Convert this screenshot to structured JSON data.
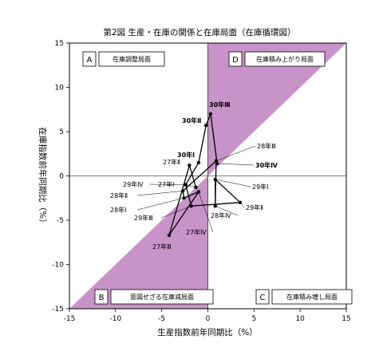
{
  "chart_data": {
    "type": "line",
    "title": "第2図 生産・在庫の関係と在庫局面（在庫循環図）",
    "xlabel": "生産指数前年同期比（%）",
    "ylabel": "在庫指数前年同期比（%）",
    "xlim": [
      -15,
      15
    ],
    "ylim": [
      -15,
      15
    ],
    "x_ticks": [
      "-15",
      "-10",
      "-5",
      "0",
      "5",
      "10",
      "15"
    ],
    "y_ticks": [
      "15",
      "10",
      "5",
      "0",
      "-5",
      "-10",
      "-15"
    ],
    "grid": false,
    "shaded_color": "#c893c8",
    "quadrants": [
      {
        "letter": "A",
        "label": "在庫調整局面",
        "position": "top-left"
      },
      {
        "letter": "D",
        "label": "在庫積み上がり局面",
        "position": "top-right"
      },
      {
        "letter": "B",
        "label": "意図せざる在庫減局面",
        "position": "bottom-left"
      },
      {
        "letter": "C",
        "label": "在庫積み増し局面",
        "position": "bottom-right"
      }
    ],
    "series": [
      {
        "points": [
          {
            "label": "27年Ⅰ",
            "x": -1.3,
            "y": -1.3
          },
          {
            "label": "27年Ⅱ",
            "x": -2.0,
            "y": 1.2
          },
          {
            "label": "27年Ⅲ",
            "x": -4.2,
            "y": -6.7
          },
          {
            "label": "27年Ⅳ",
            "x": -1.0,
            "y": -1.8
          },
          {
            "label": "28年Ⅰ",
            "x": -2.6,
            "y": -2.5
          },
          {
            "label": "28年Ⅱ",
            "x": -2.7,
            "y": -1.7
          },
          {
            "label": "28年Ⅲ",
            "x": 0.9,
            "y": 1.7
          },
          {
            "label": "28年Ⅳ",
            "x": 0.8,
            "y": -3.4
          },
          {
            "label": "29年Ⅰ",
            "x": 0.8,
            "y": -0.4
          },
          {
            "label": "29年Ⅱ",
            "x": 3.5,
            "y": -3.0
          },
          {
            "label": "29年Ⅲ",
            "x": -1.8,
            "y": -3.4
          },
          {
            "label": "29年Ⅳ",
            "x": -2.4,
            "y": -1.0
          },
          {
            "label": "30年Ⅰ",
            "x": -1.0,
            "y": 1.5
          },
          {
            "label": "30年Ⅱ",
            "x": -0.2,
            "y": 5.7
          },
          {
            "label": "30年Ⅲ",
            "x": 0.3,
            "y": 7.0
          },
          {
            "label": "30年Ⅳ",
            "x": 1.0,
            "y": 1.4
          }
        ]
      }
    ]
  }
}
